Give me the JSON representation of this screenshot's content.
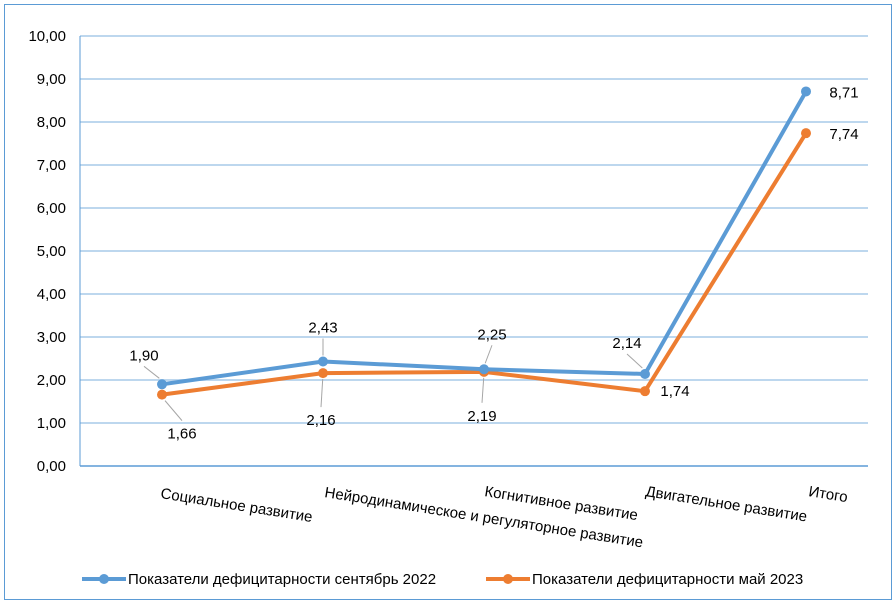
{
  "chart_data": {
    "type": "line",
    "title": "",
    "xlabel": "",
    "ylabel": "",
    "ylim": [
      0,
      10
    ],
    "yticks": [
      "0,00",
      "1,00",
      "2,00",
      "3,00",
      "4,00",
      "5,00",
      "6,00",
      "7,00",
      "8,00",
      "9,00",
      "10,00"
    ],
    "grid": true,
    "legend_position": "bottom",
    "categories": [
      "Социальное развитие",
      "Нейродинамическое и регуляторное развитие",
      "Когнитивное развитие",
      "Двигательное развитие",
      "Итого"
    ],
    "series": [
      {
        "name": "Показатели дефицитарности сентябрь 2022",
        "color": "#5b9bd5",
        "values": [
          1.9,
          2.43,
          2.25,
          2.14,
          8.71
        ],
        "labels": [
          "1,90",
          "2,43",
          "2,25",
          "2,14",
          "8,71"
        ]
      },
      {
        "name": "Показатели дефицитарности май 2023",
        "color": "#ed7d31",
        "values": [
          1.66,
          2.16,
          2.19,
          1.74,
          7.74
        ],
        "labels": [
          "1,66",
          "2,16",
          "2,19",
          "1,74",
          "7,74"
        ]
      }
    ]
  },
  "colors": {
    "gridline": "#bdd7ee",
    "axis": "#5b9bd5",
    "frame": "#5b9bd5",
    "leader": "#a6a6a6"
  }
}
